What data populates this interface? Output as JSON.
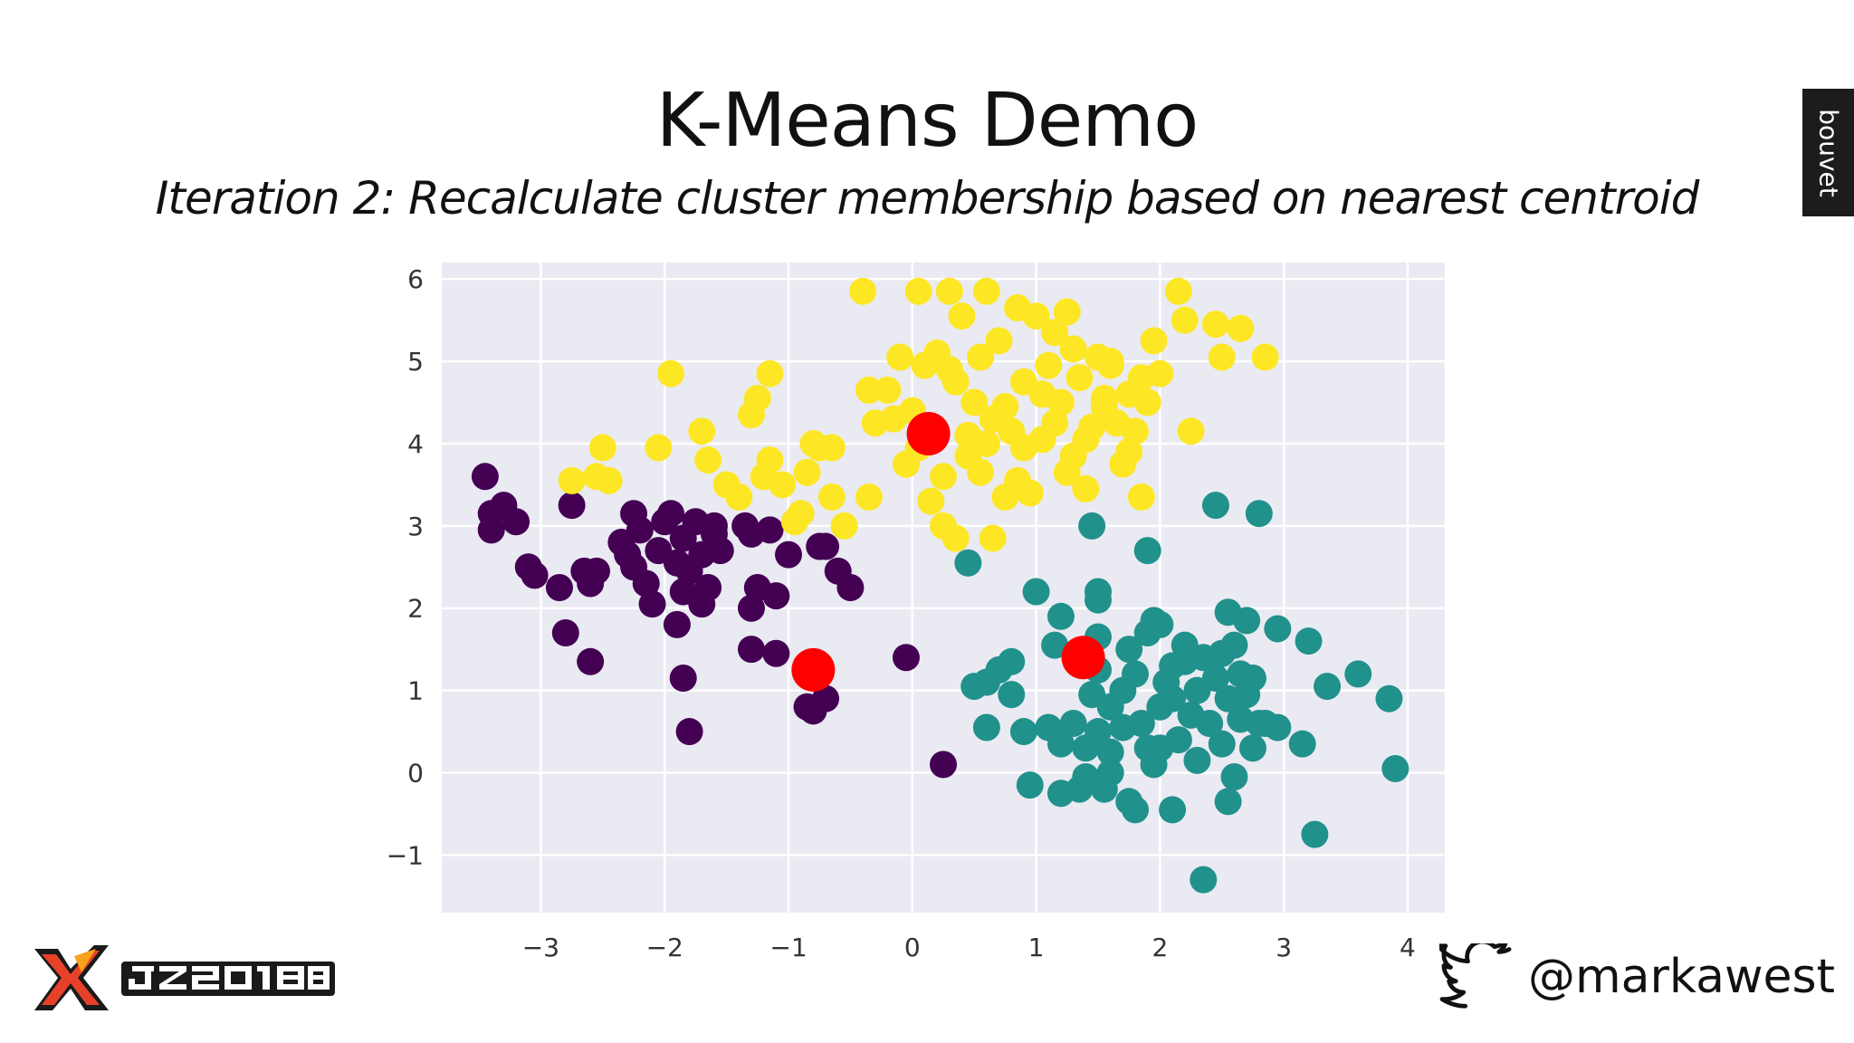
{
  "slide": {
    "title": "K-Means Demo",
    "subtitle": "Iteration 2: Recalculate cluster membership based on nearest centroid",
    "brand": "bouvet",
    "conference_logo": "JZ2018",
    "twitter_icon": "twitter-bird-icon",
    "twitter_handle": "@markawest"
  },
  "colors": {
    "plot_background": "#eaeaf2",
    "grid": "#ffffff",
    "cluster_purple": "#440154",
    "cluster_teal": "#21918c",
    "cluster_yellow": "#fde725",
    "centroid": "#ff0000"
  },
  "chart_data": {
    "type": "scatter",
    "title": "",
    "xlabel": "",
    "ylabel": "",
    "xlim": [
      -3.8,
      4.3
    ],
    "ylim": [
      -1.7,
      6.2
    ],
    "xticks": [
      -3,
      -2,
      -1,
      0,
      1,
      2,
      3,
      4
    ],
    "yticks": [
      -1,
      0,
      1,
      2,
      3,
      4,
      5,
      6
    ],
    "xtick_labels": [
      "−3",
      "−2",
      "−1",
      "0",
      "1",
      "2",
      "3",
      "4"
    ],
    "ytick_labels": [
      "−1",
      "0",
      "1",
      "2",
      "3",
      "4",
      "5",
      "6"
    ],
    "grid": true,
    "legend": "none",
    "series": [
      {
        "color": "#440154",
        "points": [
          [
            -3.45,
            3.6
          ],
          [
            -3.4,
            3.15
          ],
          [
            -3.3,
            3.25
          ],
          [
            -3.2,
            3.05
          ],
          [
            -3.4,
            2.95
          ],
          [
            -3.1,
            2.5
          ],
          [
            -3.05,
            2.4
          ],
          [
            -2.85,
            2.25
          ],
          [
            -2.8,
            1.7
          ],
          [
            -2.75,
            3.25
          ],
          [
            -2.65,
            2.45
          ],
          [
            -2.6,
            2.3
          ],
          [
            -2.55,
            2.45
          ],
          [
            -2.6,
            1.35
          ],
          [
            -2.35,
            2.8
          ],
          [
            -2.3,
            2.65
          ],
          [
            -2.25,
            2.5
          ],
          [
            -2.25,
            3.15
          ],
          [
            -2.2,
            2.95
          ],
          [
            -2.15,
            2.3
          ],
          [
            -2.1,
            2.05
          ],
          [
            -2.05,
            2.7
          ],
          [
            -2.0,
            3.05
          ],
          [
            -1.95,
            3.15
          ],
          [
            -1.9,
            2.55
          ],
          [
            -1.85,
            2.2
          ],
          [
            -1.9,
            1.8
          ],
          [
            -1.85,
            2.85
          ],
          [
            -1.8,
            2.45
          ],
          [
            -1.75,
            3.05
          ],
          [
            -1.7,
            2.65
          ],
          [
            -1.7,
            2.05
          ],
          [
            -1.65,
            2.25
          ],
          [
            -1.6,
            2.9
          ],
          [
            -1.6,
            3.0
          ],
          [
            -1.55,
            2.7
          ],
          [
            -1.85,
            1.15
          ],
          [
            -1.8,
            0.5
          ],
          [
            -1.35,
            3.0
          ],
          [
            -1.3,
            2.9
          ],
          [
            -1.3,
            2.0
          ],
          [
            -1.25,
            2.25
          ],
          [
            -1.3,
            1.5
          ],
          [
            -1.15,
            2.95
          ],
          [
            -1.1,
            2.15
          ],
          [
            -1.1,
            1.45
          ],
          [
            -1.0,
            2.65
          ],
          [
            -0.75,
            2.75
          ],
          [
            -0.7,
            2.75
          ],
          [
            -0.6,
            2.45
          ],
          [
            -0.5,
            2.25
          ],
          [
            -0.85,
            0.8
          ],
          [
            -0.8,
            0.75
          ],
          [
            -0.7,
            0.9
          ],
          [
            -0.05,
            1.4
          ],
          [
            0.25,
            0.1
          ]
        ]
      },
      {
        "color": "#21918c",
        "points": [
          [
            0.45,
            2.55
          ],
          [
            1.0,
            2.2
          ],
          [
            1.45,
            3.0
          ],
          [
            1.5,
            2.2
          ],
          [
            1.5,
            2.1
          ],
          [
            1.9,
            2.7
          ],
          [
            2.45,
            3.25
          ],
          [
            2.8,
            3.15
          ],
          [
            1.2,
            1.9
          ],
          [
            1.15,
            1.55
          ],
          [
            1.5,
            1.65
          ],
          [
            1.75,
            1.5
          ],
          [
            1.9,
            1.7
          ],
          [
            1.95,
            1.85
          ],
          [
            2.0,
            1.8
          ],
          [
            2.1,
            1.3
          ],
          [
            2.2,
            1.35
          ],
          [
            2.35,
            1.4
          ],
          [
            2.5,
            1.45
          ],
          [
            2.55,
            1.95
          ],
          [
            2.7,
            1.85
          ],
          [
            2.95,
            1.75
          ],
          [
            3.2,
            1.6
          ],
          [
            3.35,
            1.05
          ],
          [
            3.6,
            1.2
          ],
          [
            3.85,
            0.9
          ],
          [
            3.9,
            0.05
          ],
          [
            3.25,
            -0.75
          ],
          [
            3.15,
            0.35
          ],
          [
            2.95,
            0.55
          ],
          [
            2.8,
            0.6
          ],
          [
            2.65,
            0.65
          ],
          [
            2.6,
            -0.05
          ],
          [
            2.55,
            -0.35
          ],
          [
            2.35,
            -1.3
          ],
          [
            2.1,
            -0.45
          ],
          [
            1.8,
            -0.45
          ],
          [
            1.75,
            -0.35
          ],
          [
            1.55,
            -0.2
          ],
          [
            1.35,
            -0.2
          ],
          [
            1.2,
            -0.25
          ],
          [
            0.95,
            -0.15
          ],
          [
            0.9,
            0.5
          ],
          [
            0.6,
            0.55
          ],
          [
            0.5,
            1.05
          ],
          [
            0.6,
            1.1
          ],
          [
            0.7,
            1.25
          ],
          [
            0.8,
            1.35
          ],
          [
            0.8,
            0.95
          ],
          [
            1.1,
            0.55
          ],
          [
            1.2,
            0.35
          ],
          [
            1.3,
            0.6
          ],
          [
            1.4,
            0.3
          ],
          [
            1.5,
            0.5
          ],
          [
            1.6,
            0.8
          ],
          [
            1.7,
            1.0
          ],
          [
            1.8,
            1.2
          ],
          [
            1.85,
            0.6
          ],
          [
            1.9,
            0.3
          ],
          [
            2.0,
            0.8
          ],
          [
            2.05,
            1.1
          ],
          [
            2.1,
            0.9
          ],
          [
            2.15,
            0.4
          ],
          [
            2.25,
            0.7
          ],
          [
            2.3,
            1.0
          ],
          [
            2.4,
            0.6
          ],
          [
            2.45,
            1.15
          ],
          [
            2.5,
            0.35
          ],
          [
            2.55,
            0.9
          ],
          [
            2.65,
            1.2
          ],
          [
            2.7,
            0.95
          ],
          [
            2.75,
            0.3
          ],
          [
            2.85,
            0.6
          ],
          [
            1.6,
            0.25
          ],
          [
            1.7,
            0.55
          ],
          [
            1.95,
            0.1
          ],
          [
            1.45,
            0.95
          ],
          [
            1.5,
            1.25
          ],
          [
            2.2,
            1.55
          ],
          [
            2.6,
            1.55
          ],
          [
            2.75,
            1.15
          ],
          [
            1.6,
            0.0
          ],
          [
            1.4,
            -0.05
          ],
          [
            2.0,
            0.3
          ],
          [
            2.3,
            0.15
          ]
        ]
      },
      {
        "color": "#fde725",
        "points": [
          [
            -2.75,
            3.55
          ],
          [
            -2.55,
            3.6
          ],
          [
            -2.45,
            3.55
          ],
          [
            -2.5,
            3.95
          ],
          [
            -2.05,
            3.95
          ],
          [
            -1.95,
            4.85
          ],
          [
            -1.7,
            4.15
          ],
          [
            -1.65,
            3.8
          ],
          [
            -1.5,
            3.5
          ],
          [
            -1.4,
            3.35
          ],
          [
            -1.3,
            4.35
          ],
          [
            -1.25,
            4.55
          ],
          [
            -1.15,
            4.85
          ],
          [
            -1.15,
            3.8
          ],
          [
            -1.05,
            3.5
          ],
          [
            -0.95,
            3.05
          ],
          [
            -0.9,
            3.15
          ],
          [
            -0.85,
            3.65
          ],
          [
            -0.8,
            4.0
          ],
          [
            -0.75,
            3.95
          ],
          [
            -0.65,
            3.95
          ],
          [
            -0.55,
            3.0
          ],
          [
            -0.4,
            5.85
          ],
          [
            -0.35,
            4.65
          ],
          [
            -0.35,
            3.35
          ],
          [
            -0.2,
            4.65
          ],
          [
            -0.15,
            4.3
          ],
          [
            -0.1,
            5.05
          ],
          [
            -0.05,
            3.75
          ],
          [
            0.05,
            5.85
          ],
          [
            0.1,
            4.95
          ],
          [
            0.15,
            3.3
          ],
          [
            0.2,
            5.1
          ],
          [
            0.25,
            3.6
          ],
          [
            0.3,
            5.85
          ],
          [
            0.35,
            4.75
          ],
          [
            0.4,
            5.55
          ],
          [
            0.45,
            3.85
          ],
          [
            0.5,
            4.5
          ],
          [
            0.55,
            5.05
          ],
          [
            0.6,
            5.85
          ],
          [
            0.65,
            4.3
          ],
          [
            0.7,
            5.25
          ],
          [
            0.75,
            3.35
          ],
          [
            0.8,
            4.15
          ],
          [
            0.85,
            5.65
          ],
          [
            0.9,
            4.75
          ],
          [
            0.95,
            3.4
          ],
          [
            1.0,
            5.55
          ],
          [
            1.05,
            4.05
          ],
          [
            1.1,
            4.95
          ],
          [
            1.15,
            5.35
          ],
          [
            1.2,
            4.5
          ],
          [
            1.25,
            3.65
          ],
          [
            1.3,
            5.15
          ],
          [
            1.35,
            4.8
          ],
          [
            1.4,
            3.45
          ],
          [
            1.45,
            4.2
          ],
          [
            1.5,
            5.05
          ],
          [
            1.55,
            4.55
          ],
          [
            1.6,
            4.95
          ],
          [
            1.65,
            4.25
          ],
          [
            1.7,
            3.75
          ],
          [
            1.75,
            4.6
          ],
          [
            1.8,
            4.15
          ],
          [
            1.85,
            3.35
          ],
          [
            1.9,
            4.5
          ],
          [
            1.95,
            5.25
          ],
          [
            2.0,
            4.85
          ],
          [
            2.15,
            5.85
          ],
          [
            2.2,
            5.5
          ],
          [
            2.25,
            4.15
          ],
          [
            2.45,
            5.45
          ],
          [
            2.5,
            5.05
          ],
          [
            2.65,
            5.4
          ],
          [
            2.85,
            5.05
          ],
          [
            0.35,
            2.85
          ],
          [
            0.65,
            2.85
          ],
          [
            0.25,
            3.0
          ],
          [
            0.05,
            3.95
          ],
          [
            0.45,
            4.1
          ],
          [
            0.55,
            3.65
          ],
          [
            0.75,
            4.45
          ],
          [
            0.9,
            3.95
          ],
          [
            1.05,
            4.6
          ],
          [
            1.25,
            5.6
          ],
          [
            1.4,
            4.05
          ],
          [
            1.6,
            5.0
          ],
          [
            1.85,
            4.8
          ],
          [
            -0.3,
            4.25
          ],
          [
            0.0,
            4.4
          ],
          [
            0.3,
            4.9
          ],
          [
            0.6,
            4.0
          ],
          [
            0.85,
            3.55
          ],
          [
            1.15,
            4.25
          ],
          [
            1.3,
            3.85
          ],
          [
            1.55,
            4.45
          ],
          [
            1.75,
            3.9
          ],
          [
            -1.2,
            3.6
          ],
          [
            -0.65,
            3.35
          ]
        ]
      },
      {
        "name": "",
        "color": "#ff0000",
        "role": "centroids",
        "points": [
          [
            0.13,
            4.12
          ],
          [
            -0.8,
            1.25
          ],
          [
            1.38,
            1.4
          ]
        ]
      }
    ]
  }
}
